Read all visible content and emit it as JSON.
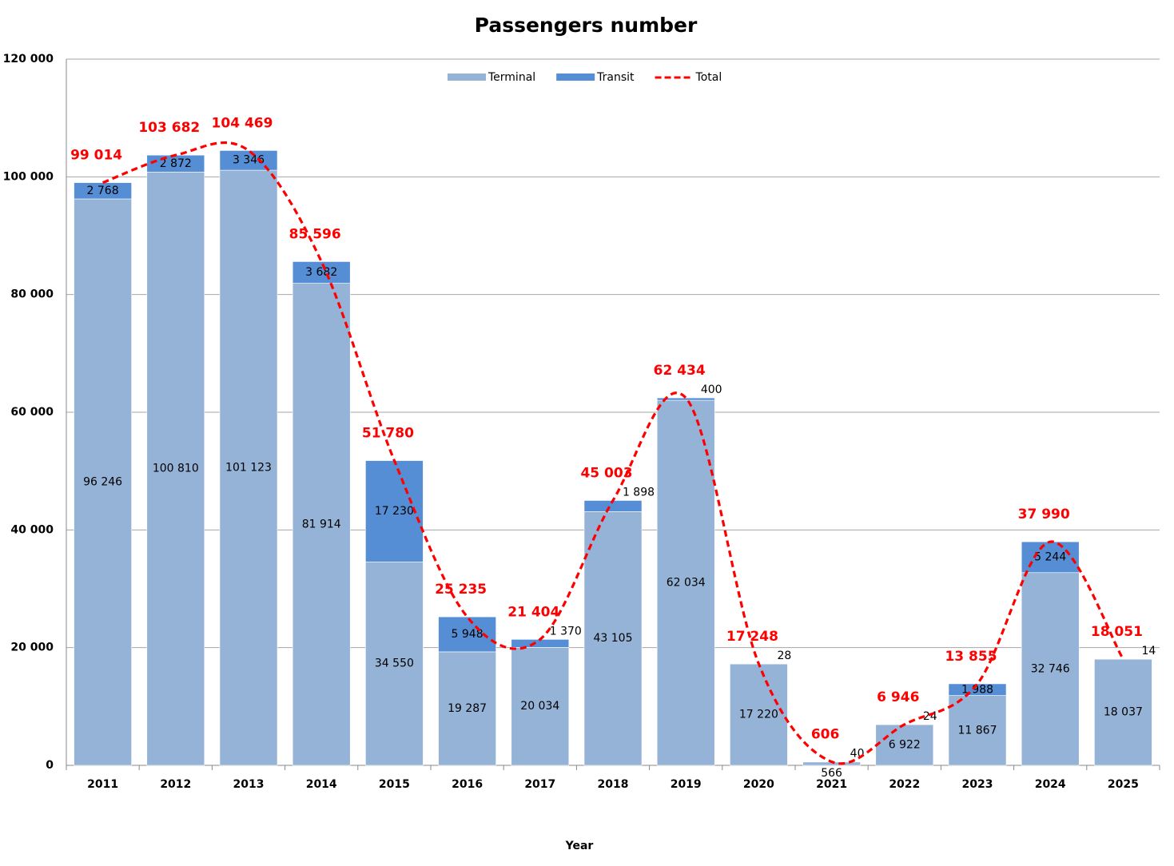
{
  "chart_data": {
    "type": "bar",
    "stacked": true,
    "title": "Passengers number",
    "x_label": "Year",
    "categories": [
      "2011",
      "2012",
      "2013",
      "2014",
      "2015",
      "2016",
      "2017",
      "2018",
      "2019",
      "2020",
      "2021",
      "2022",
      "2023",
      "2024",
      "2025"
    ],
    "series": [
      {
        "name": "Terminal",
        "color": "#95b3d7",
        "values": [
          96246,
          100810,
          101123,
          81914,
          34550,
          19287,
          20034,
          43105,
          62034,
          17220,
          566,
          6922,
          11867,
          32746,
          18037
        ],
        "value_labels": [
          "96 246",
          "100 810",
          "101 123",
          "81 914",
          "34 550",
          "19 287",
          "20 034",
          "43 105",
          "62 034",
          "17 220",
          "566",
          "6 922",
          "11 867",
          "32 746",
          "18 037"
        ]
      },
      {
        "name": "Transit",
        "color": "#558ed5",
        "values": [
          2768,
          2872,
          3346,
          3682,
          17230,
          5948,
          1370,
          1898,
          400,
          28,
          40,
          24,
          1988,
          5244,
          14
        ],
        "value_labels": [
          "2 768",
          "2 872",
          "3 346",
          "3 682",
          "17 230",
          "5 948",
          "1 370",
          "1 898",
          "400",
          "28",
          "40",
          "24",
          "1 988",
          "5 244",
          "14"
        ]
      },
      {
        "name": "Total",
        "color": "#ff0000",
        "type": "line",
        "dashed": true,
        "smooth": true,
        "values": [
          99014,
          103682,
          104469,
          85596,
          51780,
          25235,
          21404,
          45003,
          62434,
          17248,
          606,
          6946,
          13855,
          37990,
          18051
        ],
        "value_labels": [
          "99 014",
          "103 682",
          "104 469",
          "85 596",
          "51 780",
          "25 235",
          "21 404",
          "45 003",
          "62 434",
          "17 248",
          "606",
          "6 946",
          "13 855",
          "37 990",
          "18 051"
        ]
      }
    ],
    "ylim": [
      0,
      120000
    ],
    "yticks": [
      0,
      {
        "value": 20000,
        "label": "20 000"
      },
      {
        "value": 40000,
        "label": "40 000"
      },
      {
        "value": 60000,
        "label": "60 000"
      },
      {
        "value": 80000,
        "label": "80 000"
      },
      {
        "value": 100000,
        "label": "100 000"
      },
      {
        "value": 120000,
        "label": "120 000"
      }
    ],
    "grid": true,
    "legend": "top"
  }
}
